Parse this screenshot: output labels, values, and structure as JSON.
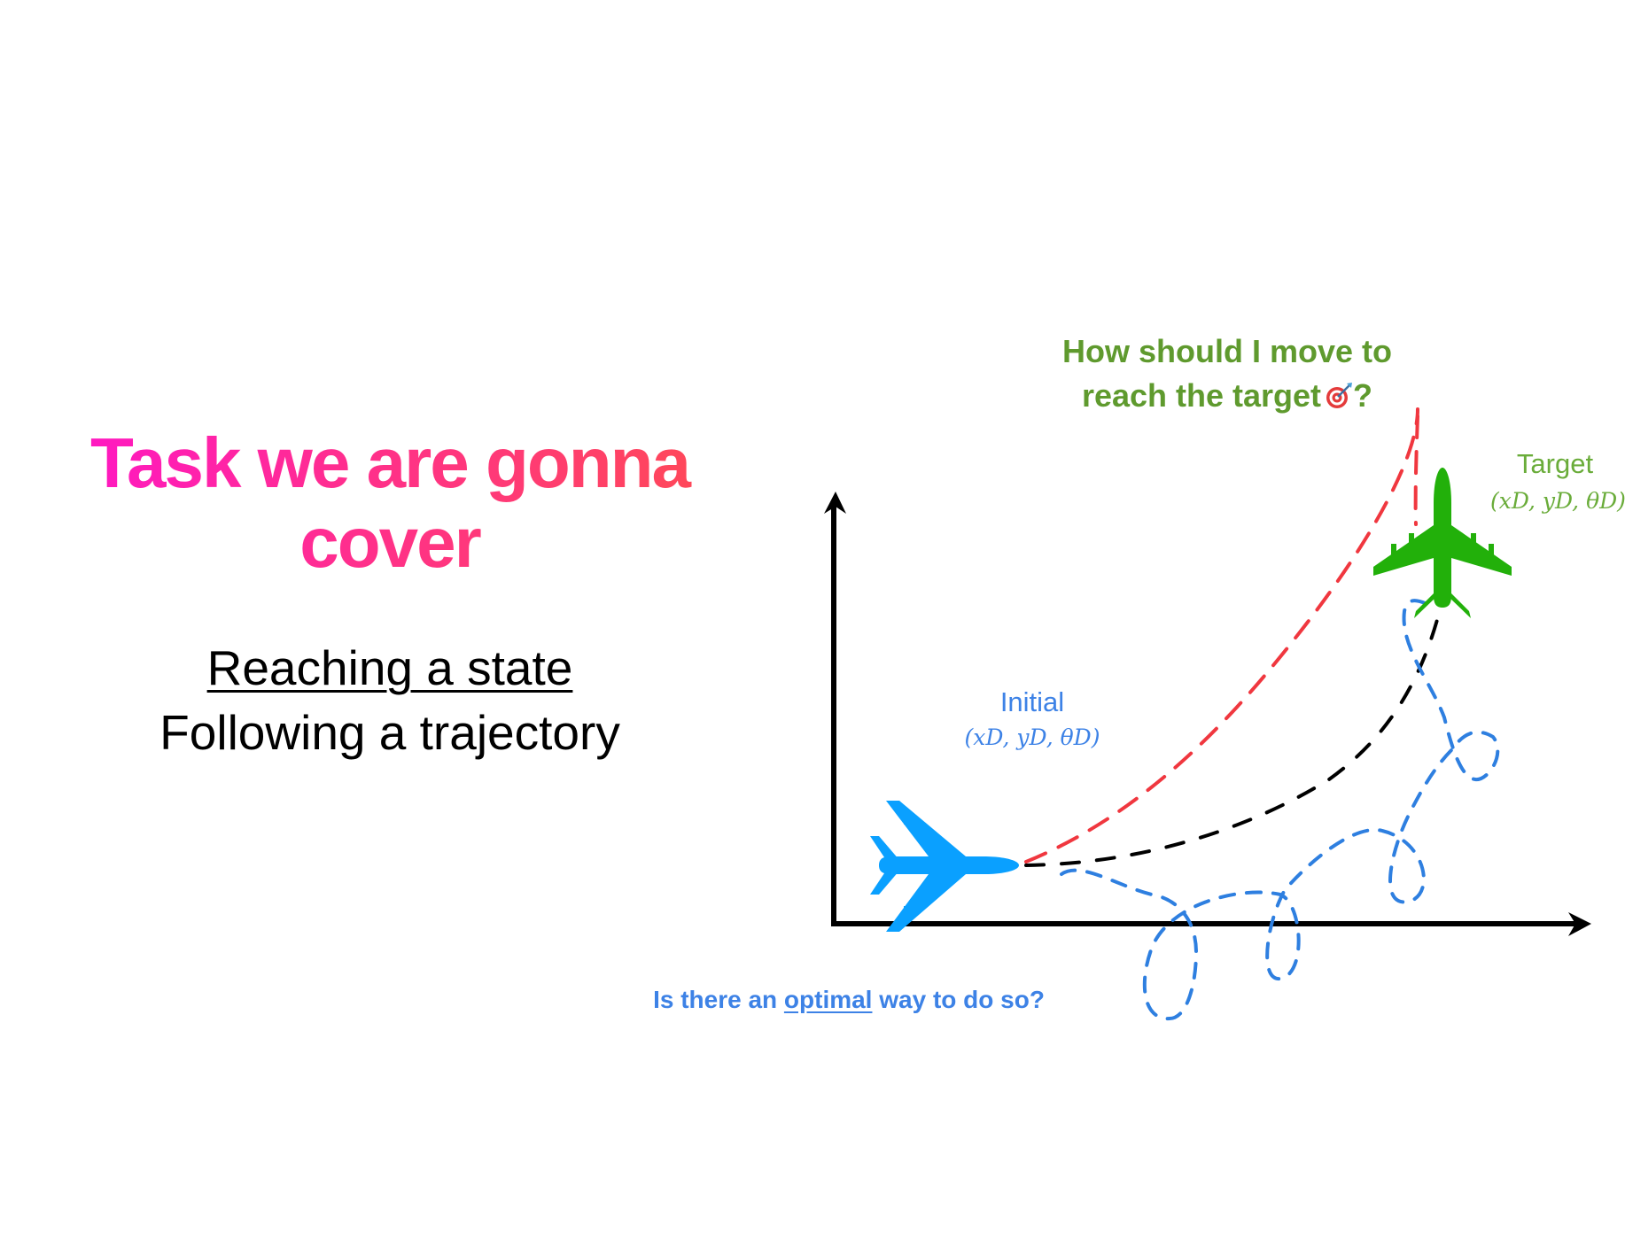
{
  "title": "Task we are gonna cover",
  "items": {
    "reaching": "Reaching a state",
    "following": "Following a trajectory"
  },
  "question": {
    "line1": "How should I move to",
    "line2": "reach the target",
    "suffix": "?"
  },
  "initial": {
    "label": "Initial",
    "math": "(xD, yD, θD)"
  },
  "target": {
    "label": "Target",
    "math": "(xD, yD, θD)"
  },
  "bottom_question": {
    "prefix": "Is there an",
    "emphasis": "optimal",
    "suffix": "way to do so?"
  },
  "colors": {
    "title_gradient_start": "#ff16c8",
    "title_gradient_end": "#ff4a55",
    "question": "#5f9a2e",
    "initial_plane": "#0aa0ff",
    "target_plane": "#22b00a",
    "red_path": "#f0373f",
    "black_path": "#000000",
    "blue_path": "#2e7fe0",
    "axes": "#000000"
  },
  "icons": {
    "initial_plane": "airplane-icon",
    "target_plane": "airplane-icon",
    "target_emoji": "dart-target-icon"
  }
}
